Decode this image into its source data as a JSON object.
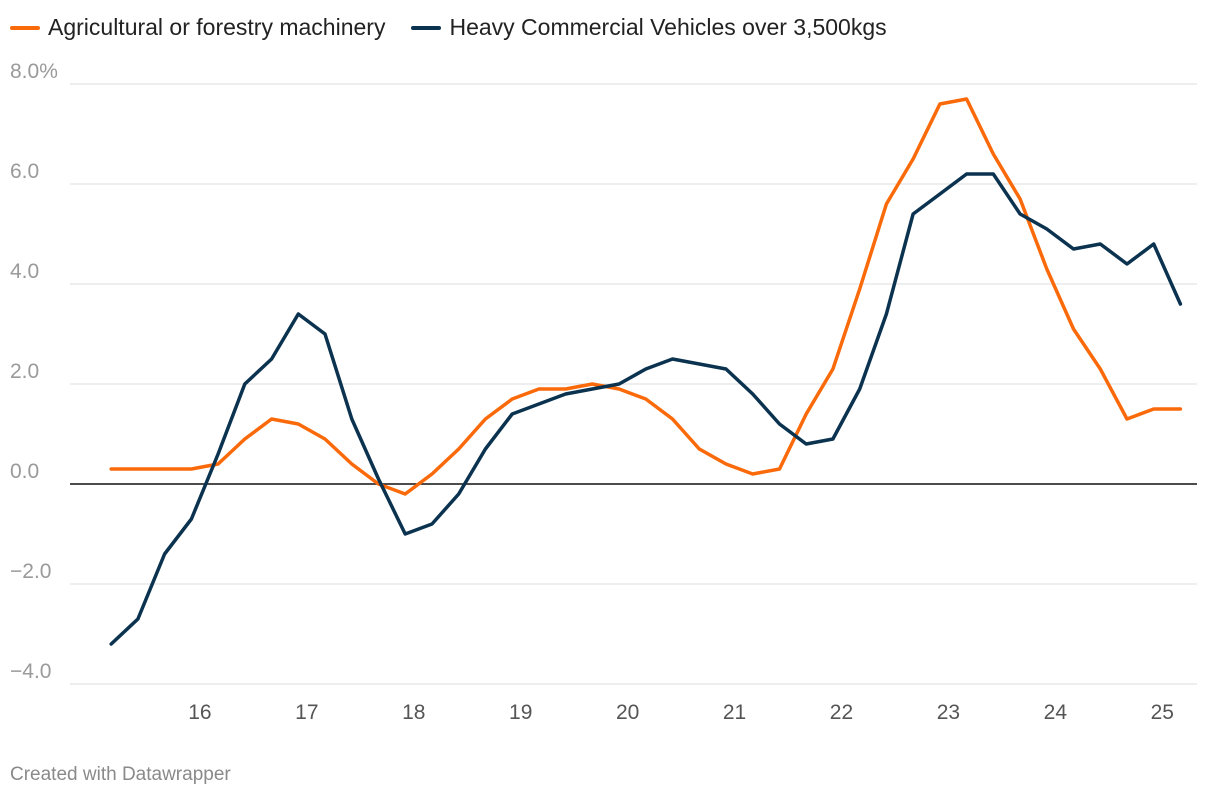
{
  "legend": {
    "items": [
      {
        "label": "Agricultural or forestry machinery",
        "color": "#fa6a0a"
      },
      {
        "label": "Heavy Commercial Vehicles over 3,500kgs",
        "color": "#0b3350"
      }
    ]
  },
  "footer": {
    "credit": "Created with Datawrapper"
  },
  "chart_data": {
    "type": "line",
    "ylim": [
      -4,
      8
    ],
    "y_ticks": [
      {
        "value": 8,
        "label": "8.0%"
      },
      {
        "value": 6,
        "label": "6.0"
      },
      {
        "value": 4,
        "label": "4.0"
      },
      {
        "value": 2,
        "label": "2.0"
      },
      {
        "value": 0,
        "label": "0.0"
      },
      {
        "value": -2,
        "label": "−2.0"
      },
      {
        "value": -4,
        "label": "−4.0"
      }
    ],
    "x_range": [
      15.0,
      25.25
    ],
    "x_ticks": [
      {
        "value": 16,
        "label": "16"
      },
      {
        "value": 17,
        "label": "17"
      },
      {
        "value": 18,
        "label": "18"
      },
      {
        "value": 19,
        "label": "19"
      },
      {
        "value": 20,
        "label": "20"
      },
      {
        "value": 21,
        "label": "21"
      },
      {
        "value": 22,
        "label": "22"
      },
      {
        "value": 23,
        "label": "23"
      },
      {
        "value": 24,
        "label": "24"
      },
      {
        "value": 25,
        "label": "25"
      }
    ],
    "grid": true,
    "legend_position": "top-left",
    "series": [
      {
        "name": "Agricultural or forestry machinery",
        "color": "#fa6a0a",
        "x": [
          15.17,
          15.42,
          15.67,
          15.92,
          16.17,
          16.42,
          16.67,
          16.92,
          17.17,
          17.42,
          17.67,
          17.92,
          18.17,
          18.42,
          18.67,
          18.92,
          19.17,
          19.42,
          19.67,
          19.92,
          20.17,
          20.42,
          20.67,
          20.92,
          21.17,
          21.42,
          21.67,
          21.92,
          22.17,
          22.42,
          22.67,
          22.92,
          23.17,
          23.42,
          23.67,
          23.92,
          24.17,
          24.42,
          24.67,
          24.92,
          25.17
        ],
        "values": [
          0.3,
          0.3,
          0.3,
          0.3,
          0.4,
          0.9,
          1.3,
          1.2,
          0.9,
          0.4,
          0.0,
          -0.2,
          0.2,
          0.7,
          1.3,
          1.7,
          1.9,
          1.9,
          2.0,
          1.9,
          1.7,
          1.3,
          0.7,
          0.4,
          0.2,
          0.3,
          1.4,
          2.3,
          3.9,
          5.6,
          6.5,
          7.6,
          7.7,
          6.6,
          5.7,
          4.3,
          3.1,
          2.3,
          1.3,
          1.5,
          1.5
        ]
      },
      {
        "name": "Heavy Commercial Vehicles over 3,500kgs",
        "color": "#0b3350",
        "x": [
          15.17,
          15.42,
          15.67,
          15.92,
          16.17,
          16.42,
          16.67,
          16.92,
          17.17,
          17.42,
          17.67,
          17.92,
          18.17,
          18.42,
          18.67,
          18.92,
          19.17,
          19.42,
          19.67,
          19.92,
          20.17,
          20.42,
          20.67,
          20.92,
          21.17,
          21.42,
          21.67,
          21.92,
          22.17,
          22.42,
          22.67,
          22.92,
          23.17,
          23.42,
          23.67,
          23.92,
          24.17,
          24.42,
          24.67,
          24.92,
          25.17
        ],
        "values": [
          -3.2,
          -2.7,
          -1.4,
          -0.7,
          0.6,
          2.0,
          2.5,
          3.4,
          3.0,
          1.3,
          0.1,
          -1.0,
          -0.8,
          -0.2,
          0.7,
          1.4,
          1.6,
          1.8,
          1.9,
          2.0,
          2.3,
          2.5,
          2.4,
          2.3,
          1.8,
          1.2,
          0.8,
          0.9,
          1.9,
          3.4,
          5.4,
          5.8,
          6.2,
          6.2,
          5.4,
          5.1,
          4.7,
          4.8,
          4.4,
          4.8,
          3.6
        ]
      }
    ]
  }
}
